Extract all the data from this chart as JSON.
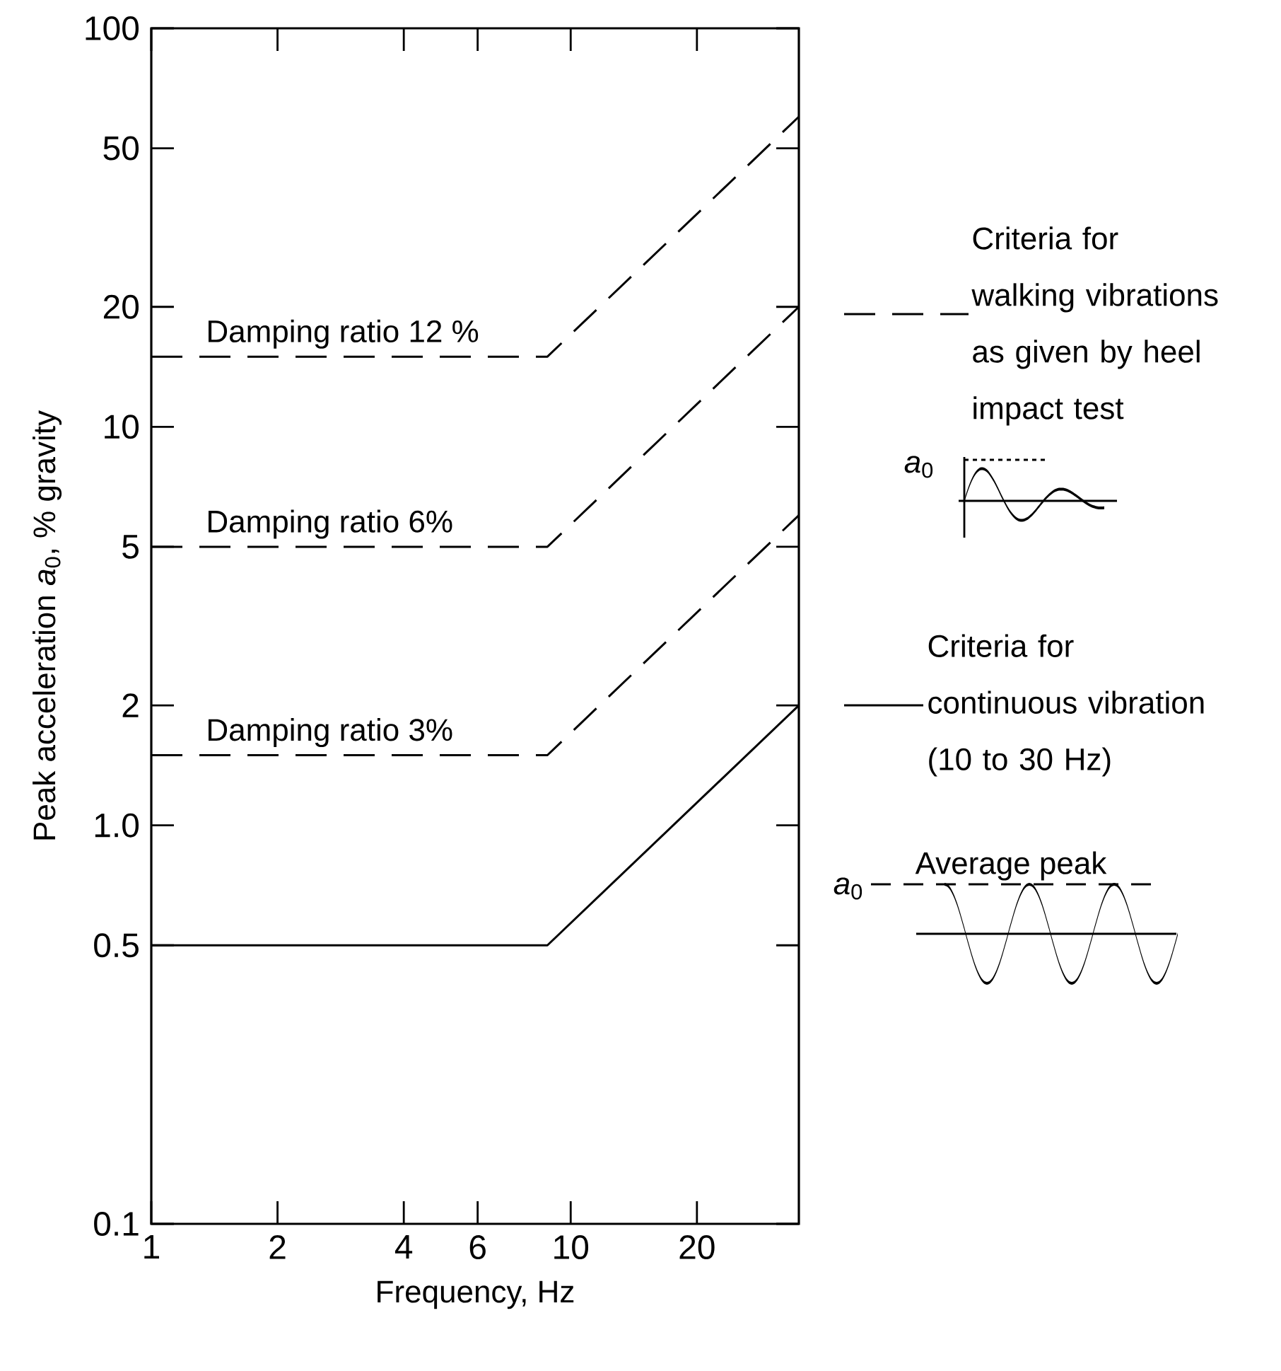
{
  "chart_data": {
    "type": "line",
    "xlabel": "Frequency, Hz",
    "ylabel": "Peak acceleration *a*$_{0}$, % gravity",
    "log": "xy",
    "legend": "right",
    "xlim": [
      1,
      35
    ],
    "ylim": [
      0.1,
      100
    ],
    "xticks": [
      1,
      2,
      4,
      6,
      10,
      20
    ],
    "yticks": [
      0.1,
      0.5,
      {
        "value": 1,
        "label": "1.0"
      },
      2,
      5,
      10,
      20,
      50,
      100
    ],
    "x": [
      1,
      8.8,
      35
    ],
    "series": [
      {
        "name": "Damping ratio 12 %",
        "color": "#000000",
        "line_style": "dashed",
        "values": [
          15,
          15,
          60
        ]
      },
      {
        "name": "Damping ratio 6%",
        "color": "#000000",
        "line_style": "dashed",
        "values": [
          5,
          5,
          20
        ]
      },
      {
        "name": "Damping ratio 3%",
        "color": "#000000",
        "line_style": "dashed",
        "values": [
          1.5,
          1.5,
          6
        ]
      },
      {
        "name": "Criteria for continuous vibration (10 to 30 Hz)",
        "color": "#000000",
        "line_style": "solid",
        "values": [
          0.5,
          0.5,
          2
        ]
      }
    ],
    "annotations": [
      "Criteria for walking vibrations as given by heel impact test",
      "*a*$_{0}$",
      "Average peak",
      "*a*$_{0}$"
    ]
  }
}
